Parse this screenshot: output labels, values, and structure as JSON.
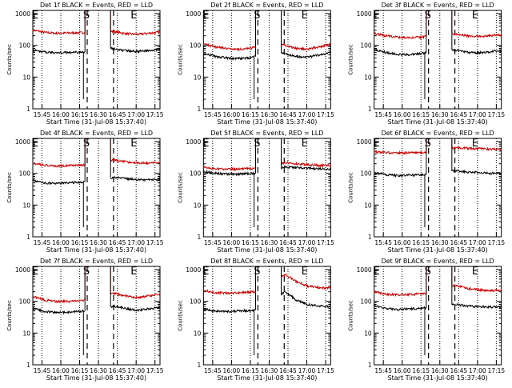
{
  "chart_data": [
    {
      "type": "line",
      "title": "Det 1f BLACK = Events, RED = LLD",
      "xlabel": "Start Time (31-Jul-08 15:37:40)",
      "ylabel": "Counts/sec",
      "x_ticks": [
        "15:45",
        "16:00",
        "16:15",
        "16:30",
        "16:45",
        "17:00",
        "17:15"
      ],
      "y_ticks": [
        "1",
        "10",
        "100",
        "1000"
      ],
      "markers": [
        "E",
        "S",
        "E"
      ],
      "series": [
        {
          "color": "#cc0000",
          "values": [
            300,
            255,
            240,
            245,
            250,
            258,
            285,
            270,
            235,
            220,
            240,
            260
          ]
        },
        {
          "color": "#000000",
          "values": [
            70,
            62,
            58,
            60,
            60,
            63,
            82,
            78,
            68,
            64,
            70,
            76
          ]
        }
      ]
    },
    {
      "type": "line",
      "title": "Det 2f BLACK = Events, RED = LLD",
      "xlabel": "Start Time (31-Jul-08 15:37:40)",
      "ylabel": "Counts/sec",
      "x_ticks": [
        "15:45",
        "16:00",
        "16:15",
        "16:30",
        "16:45",
        "17:00",
        "17:15"
      ],
      "y_ticks": [
        "1",
        "10",
        "100",
        "1000"
      ],
      "markers": [
        "E",
        "S",
        "E"
      ],
      "series": [
        {
          "color": "#cc0000",
          "values": [
            110,
            90,
            80,
            75,
            80,
            95,
            120,
            100,
            80,
            75,
            90,
            110
          ]
        },
        {
          "color": "#000000",
          "values": [
            55,
            45,
            40,
            38,
            40,
            48,
            62,
            55,
            45,
            42,
            50,
            60
          ]
        }
      ]
    },
    {
      "type": "line",
      "title": "Det 3f BLACK = Events, RED = LLD",
      "xlabel": "Start Time (31-Jul-08 15:37:40)",
      "ylabel": "Counts/sec",
      "x_ticks": [
        "15:45",
        "16:00",
        "16:15",
        "16:30",
        "16:45",
        "17:00",
        "17:15"
      ],
      "y_ticks": [
        "1",
        "10",
        "100",
        "1000"
      ],
      "markers": [
        "E",
        "S",
        "E"
      ],
      "series": [
        {
          "color": "#cc0000",
          "values": [
            240,
            200,
            180,
            175,
            180,
            200,
            250,
            230,
            200,
            190,
            200,
            220
          ]
        },
        {
          "color": "#000000",
          "values": [
            75,
            60,
            52,
            50,
            55,
            62,
            80,
            70,
            60,
            58,
            62,
            70
          ]
        }
      ]
    },
    {
      "type": "line",
      "title": "Det 4f BLACK = Events, RED = LLD",
      "xlabel": "Start Time (31-Jul-08 15:37:40)",
      "ylabel": "Counts/sec",
      "x_ticks": [
        "15:45",
        "16:00",
        "16:15",
        "16:30",
        "16:45",
        "17:00",
        "17:15"
      ],
      "y_ticks": [
        "1",
        "10",
        "100",
        "1000"
      ],
      "markers": [
        "E",
        "S",
        "E"
      ],
      "series": [
        {
          "color": "#cc0000",
          "values": [
            210,
            180,
            170,
            175,
            180,
            190,
            210,
            260,
            230,
            215,
            210,
            220
          ]
        },
        {
          "color": "#000000",
          "values": [
            60,
            50,
            48,
            50,
            52,
            55,
            60,
            75,
            68,
            64,
            62,
            65
          ]
        }
      ]
    },
    {
      "type": "line",
      "title": "Det 5f BLACK = Events, RED = LLD",
      "xlabel": "Start Time (31-Jul-08 15:37:40)",
      "ylabel": "Counts/sec",
      "x_ticks": [
        "15:45",
        "16:00",
        "16:15",
        "16:30",
        "16:45",
        "17:00",
        "17:15"
      ],
      "y_ticks": [
        "1",
        "10",
        "100",
        "1000"
      ],
      "markers": [
        "E",
        "S",
        "E"
      ],
      "series": [
        {
          "color": "#cc0000",
          "values": [
            160,
            140,
            135,
            135,
            140,
            145,
            150,
            220,
            200,
            190,
            180,
            175
          ]
        },
        {
          "color": "#000000",
          "values": [
            115,
            100,
            95,
            95,
            98,
            100,
            110,
            160,
            150,
            145,
            140,
            135
          ]
        }
      ]
    },
    {
      "type": "line",
      "title": "Det 6f BLACK = Events, RED = LLD",
      "xlabel": "Start Time (31-Jul-08 15:37:40)",
      "ylabel": "Counts/sec",
      "x_ticks": [
        "15:45",
        "16:00",
        "16:15",
        "16:30",
        "16:45",
        "17:00",
        "17:15"
      ],
      "y_ticks": [
        "1",
        "10",
        "100",
        "1000"
      ],
      "markers": [
        "E",
        "S",
        "E"
      ],
      "series": [
        {
          "color": "#cc0000",
          "values": [
            480,
            450,
            440,
            440,
            450,
            460,
            480,
            650,
            620,
            600,
            580,
            570
          ]
        },
        {
          "color": "#000000",
          "values": [
            105,
            90,
            85,
            88,
            90,
            95,
            110,
            120,
            110,
            105,
            100,
            100
          ]
        }
      ]
    },
    {
      "type": "line",
      "title": "Det 7f BLACK = Events, RED = LLD",
      "xlabel": "Start Time (31-Jul-08 15:37:40)",
      "ylabel": "Counts/sec",
      "x_ticks": [
        "15:45",
        "16:00",
        "16:15",
        "16:30",
        "16:45",
        "17:00",
        "17:15"
      ],
      "y_ticks": [
        "1",
        "10",
        "100",
        "1000"
      ],
      "markers": [
        "E",
        "S",
        "E"
      ],
      "series": [
        {
          "color": "#cc0000",
          "values": [
            140,
            110,
            100,
            100,
            105,
            115,
            140,
            180,
            150,
            130,
            150,
            170
          ]
        },
        {
          "color": "#000000",
          "values": [
            60,
            48,
            45,
            45,
            48,
            52,
            62,
            70,
            60,
            52,
            58,
            65
          ]
        }
      ]
    },
    {
      "type": "line",
      "title": "Det 8f BLACK = Events, RED = LLD",
      "xlabel": "Start Time (31-Jul-08 15:37:40)",
      "ylabel": "Counts/sec",
      "x_ticks": [
        "15:45",
        "16:00",
        "16:15",
        "16:30",
        "16:45",
        "17:00",
        "17:15"
      ],
      "y_ticks": [
        "1",
        "10",
        "100",
        "1000"
      ],
      "markers": [
        "E",
        "S",
        "E"
      ],
      "series": [
        {
          "color": "#cc0000",
          "values": [
            220,
            190,
            180,
            185,
            195,
            210,
            240,
            700,
            420,
            300,
            270,
            260
          ]
        },
        {
          "color": "#000000",
          "values": [
            58,
            50,
            48,
            50,
            52,
            55,
            65,
            200,
            110,
            80,
            72,
            70
          ]
        }
      ]
    },
    {
      "type": "line",
      "title": "Det 9f BLACK = Events, RED = LLD",
      "xlabel": "Start Time (31-Jul-08 15:37:40)",
      "ylabel": "Counts/sec",
      "x_ticks": [
        "15:45",
        "16:00",
        "16:15",
        "16:30",
        "16:45",
        "17:00",
        "17:15"
      ],
      "y_ticks": [
        "1",
        "10",
        "100",
        "1000"
      ],
      "markers": [
        "E",
        "S",
        "E"
      ],
      "series": [
        {
          "color": "#cc0000",
          "values": [
            200,
            170,
            160,
            165,
            170,
            180,
            200,
            330,
            260,
            230,
            220,
            215
          ]
        },
        {
          "color": "#000000",
          "values": [
            75,
            60,
            55,
            58,
            60,
            65,
            75,
            80,
            72,
            68,
            66,
            65
          ]
        }
      ]
    }
  ]
}
